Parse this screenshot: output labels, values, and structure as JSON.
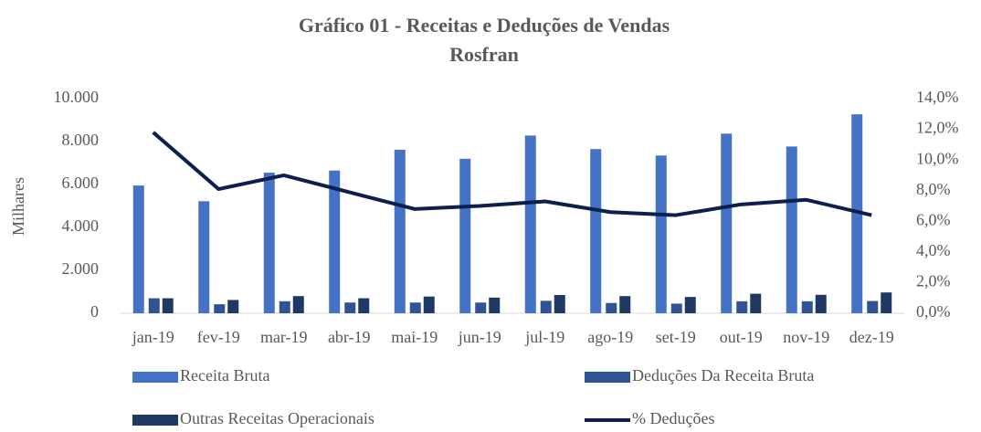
{
  "chart_data": {
    "type": "bar",
    "title": [
      "Gráfico 01 - Receitas e Deduções de Vendas",
      "Rosfran"
    ],
    "ylabel": "Milhares",
    "categories": [
      "jan-19",
      "fev-19",
      "mar-19",
      "abr-19",
      "mai-19",
      "jun-19",
      "jul-19",
      "ago-19",
      "set-19",
      "out-19",
      "nov-19",
      "dez-19"
    ],
    "series": [
      {
        "name": "Receita Bruta",
        "type": "bar",
        "color": "#4472c4",
        "values": [
          5950,
          5220,
          6550,
          6650,
          7620,
          7200,
          8280,
          7650,
          7350,
          8370,
          7770,
          9270
        ]
      },
      {
        "name": "Deduções Da Receita Bruta",
        "type": "bar",
        "color": "#2f5496",
        "values": [
          700,
          420,
          560,
          500,
          500,
          500,
          580,
          480,
          450,
          560,
          560,
          570
        ]
      },
      {
        "name": "Outras Receitas Operacionais",
        "type": "bar",
        "color": "#1f3864",
        "values": [
          700,
          620,
          800,
          700,
          780,
          730,
          850,
          800,
          760,
          910,
          860,
          970
        ]
      },
      {
        "name": "% Deduções",
        "type": "line",
        "axis": "y2",
        "color": "#0c1f4d",
        "values": [
          11.8,
          8.1,
          9.0,
          7.9,
          6.8,
          7.0,
          7.3,
          6.6,
          6.4,
          7.1,
          7.4,
          6.4
        ]
      }
    ],
    "ylim": [
      0,
      10000
    ],
    "yticks": [
      0,
      {
        "value": 2000,
        "label": "2.000"
      },
      {
        "value": 4000,
        "label": "4.000"
      },
      {
        "value": 6000,
        "label": "6.000"
      },
      {
        "value": 8000,
        "label": "8.000"
      },
      {
        "value": 10000,
        "label": "10.000"
      }
    ],
    "y2lim": [
      0,
      14
    ],
    "y2ticks": [
      {
        "value": 0,
        "label": "0,0%"
      },
      {
        "value": 2,
        "label": "2,0%"
      },
      {
        "value": 4,
        "label": "4,0%"
      },
      {
        "value": 6,
        "label": "6,0%"
      },
      {
        "value": 8,
        "label": "8,0%"
      },
      {
        "value": 10,
        "label": "10,0%"
      },
      {
        "value": 12,
        "label": "12,0%"
      },
      {
        "value": 14,
        "label": "14,0%"
      }
    ],
    "grid": false,
    "legend": "bottom"
  }
}
